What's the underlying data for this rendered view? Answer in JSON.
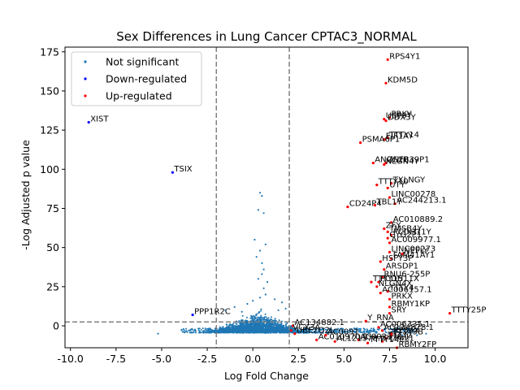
{
  "chart_data": {
    "type": "scatter",
    "title": "Sex Differences in Lung Cancer CPTAC3_NORMAL",
    "xlabel": "Log Fold Change",
    "ylabel": "-Log Adjusted p value",
    "xlim": [
      -10.3,
      11.8
    ],
    "ylim": [
      -14,
      178
    ],
    "xticks": [
      "-10.0",
      "-7.5",
      "-5.0",
      "-2.5",
      "0.0",
      "2.5",
      "5.0",
      "7.5",
      "10.0"
    ],
    "yticks": [
      "0",
      "25",
      "50",
      "75",
      "100",
      "125",
      "150",
      "175"
    ],
    "thresholds": {
      "fold_change": [
        -2,
        2
      ],
      "neg_log_p": 2.5
    },
    "legend": {
      "placement": "upper-left",
      "entries": [
        {
          "label": "Not significant",
          "color": "#1f77b4"
        },
        {
          "label": "Down-regulated",
          "color": "#0000ff"
        },
        {
          "label": "Up-regulated",
          "color": "#ff0000"
        }
      ]
    },
    "series": [
      {
        "name": "Down-regulated",
        "color": "#0000ff",
        "points": [
          {
            "x": -9.0,
            "y": 130,
            "label": "XIST"
          },
          {
            "x": -4.4,
            "y": 98,
            "label": "TSIX"
          },
          {
            "x": -3.3,
            "y": 7,
            "label": "PPP1R2C"
          }
        ]
      },
      {
        "name": "Up-regulated",
        "color": "#ff0000",
        "points": [
          {
            "x": 7.4,
            "y": 170,
            "label": "RPS4Y1"
          },
          {
            "x": 7.3,
            "y": 155,
            "label": "KDM5D"
          },
          {
            "x": 7.5,
            "y": 133,
            "label": "PRKY"
          },
          {
            "x": 7.3,
            "y": 131,
            "label": "DDX3Y"
          },
          {
            "x": 7.2,
            "y": 132,
            "label": "USP9Y"
          },
          {
            "x": 7.4,
            "y": 120,
            "label": "TTTY14"
          },
          {
            "x": 7.2,
            "y": 119,
            "label": "EIF1AY"
          },
          {
            "x": 5.9,
            "y": 117,
            "label": "PSMA6P1"
          },
          {
            "x": 7.3,
            "y": 104,
            "label": "ZNF839P1"
          },
          {
            "x": 6.6,
            "y": 104,
            "label": "ANOS2P"
          },
          {
            "x": 7.2,
            "y": 103,
            "label": "NLGN4Y"
          },
          {
            "x": 7.6,
            "y": 91,
            "label": "TXLNGY"
          },
          {
            "x": 6.8,
            "y": 90,
            "label": "TTTY10"
          },
          {
            "x": 7.4,
            "y": 88,
            "label": "UTY"
          },
          {
            "x": 7.5,
            "y": 82,
            "label": "LINC00278"
          },
          {
            "x": 7.8,
            "y": 78,
            "label": "AC244213.1"
          },
          {
            "x": 6.7,
            "y": 77,
            "label": "TBL1Y"
          },
          {
            "x": 5.2,
            "y": 76,
            "label": "CD24P4"
          },
          {
            "x": 7.6,
            "y": 66,
            "label": "AC010889.2"
          },
          {
            "x": 7.2,
            "y": 62,
            "label": "ZFY"
          },
          {
            "x": 7.4,
            "y": 60,
            "label": "TMSB4Y"
          },
          {
            "x": 7.6,
            "y": 58,
            "label": "PCDH11Y"
          },
          {
            "x": 7.4,
            "y": 56,
            "label": "GYG2P1"
          },
          {
            "x": 7.5,
            "y": 53,
            "label": "AC009977.1"
          },
          {
            "x": 7.5,
            "y": 47,
            "label": "LINC00273"
          },
          {
            "x": 8.2,
            "y": 46,
            "label": "NEFLY"
          },
          {
            "x": 7.6,
            "y": 43,
            "label": "FAM41AY1"
          },
          {
            "x": 7.0,
            "y": 41,
            "label": "HSFY3P"
          },
          {
            "x": 7.2,
            "y": 36,
            "label": "ARSDP1"
          },
          {
            "x": 7.1,
            "y": 31,
            "label": "RNU6-255P"
          },
          {
            "x": 6.9,
            "y": 28,
            "label": "PCDH11X"
          },
          {
            "x": 6.5,
            "y": 28,
            "label": "TTTY15"
          },
          {
            "x": 6.8,
            "y": 25,
            "label": "NLGN4X"
          },
          {
            "x": 7.4,
            "y": 22,
            "label": "TTTY4"
          },
          {
            "x": 7.0,
            "y": 21,
            "label": "AC006157.1"
          },
          {
            "x": 7.5,
            "y": 17,
            "label": "PRKX"
          },
          {
            "x": 7.5,
            "y": 12,
            "label": "RBMY1KP"
          },
          {
            "x": 7.5,
            "y": 8,
            "label": "SRY"
          },
          {
            "x": 6.2,
            "y": 3,
            "label": "Y_RNA"
          },
          {
            "x": 6.9,
            "y": -1,
            "label": "AC006335.1"
          },
          {
            "x": 7.1,
            "y": -3,
            "label": "AC134878.1"
          },
          {
            "x": 7.6,
            "y": -5,
            "label": "RPS4X"
          },
          {
            "x": 5.8,
            "y": -9,
            "label": "AC002378.1"
          },
          {
            "x": 7.6,
            "y": -6,
            "label": "TTTY9B"
          },
          {
            "x": 7.3,
            "y": -8,
            "label": "TTTY2"
          },
          {
            "x": 7.1,
            "y": -10,
            "label": "PCP4L1"
          },
          {
            "x": 7.9,
            "y": -14,
            "label": "RBMY2FP"
          },
          {
            "x": 10.8,
            "y": 8,
            "label": "TTTY25P"
          },
          {
            "x": 2.2,
            "y": 0,
            "label": "AC134882.1"
          },
          {
            "x": 2.1,
            "y": -3,
            "label": "VCX3A"
          },
          {
            "x": 2.3,
            "y": -5,
            "label": "UBE2Q2L"
          },
          {
            "x": 3.5,
            "y": -9,
            "label": "AC010970.2"
          },
          {
            "x": 4.5,
            "y": -10,
            "label": "AL121578.2"
          },
          {
            "x": 4.0,
            "y": -6,
            "label": "AC0091"
          },
          {
            "x": 6.3,
            "y": -11,
            "label": "TTTY14C"
          }
        ]
      },
      {
        "name": "Not significant",
        "color": "#1f77b4",
        "points": [
          {
            "x": 0.4,
            "y": 85
          },
          {
            "x": 0.5,
            "y": 83
          },
          {
            "x": 0.3,
            "y": 74
          },
          {
            "x": 0.6,
            "y": 72
          },
          {
            "x": 0.1,
            "y": 55
          },
          {
            "x": 0.7,
            "y": 52
          },
          {
            "x": 0.4,
            "y": 48
          },
          {
            "x": 0.2,
            "y": 44
          },
          {
            "x": 0.5,
            "y": 40
          },
          {
            "x": 0.6,
            "y": 36
          },
          {
            "x": 0.5,
            "y": 33
          },
          {
            "x": 0.3,
            "y": 30
          },
          {
            "x": 0.8,
            "y": 28
          },
          {
            "x": 0.6,
            "y": 24
          },
          {
            "x": 0.7,
            "y": 20
          },
          {
            "x": 0.4,
            "y": 18
          },
          {
            "x": 1.2,
            "y": 17
          },
          {
            "x": 0.0,
            "y": 16
          },
          {
            "x": 1.6,
            "y": 15
          },
          {
            "x": -0.3,
            "y": 14
          },
          {
            "x": -1.0,
            "y": 12
          },
          {
            "x": 1.8,
            "y": 11
          },
          {
            "x": -1.5,
            "y": 10
          },
          {
            "x": 1.4,
            "y": 10
          },
          {
            "x": -0.6,
            "y": 9
          },
          {
            "x": -5.2,
            "y": -5
          },
          {
            "x": -3.6,
            "y": -4
          },
          {
            "x": 8.2,
            "y": -6
          },
          {
            "x": 9.0,
            "y": -6
          },
          {
            "x": 9.5,
            "y": -5
          }
        ]
      }
    ]
  }
}
